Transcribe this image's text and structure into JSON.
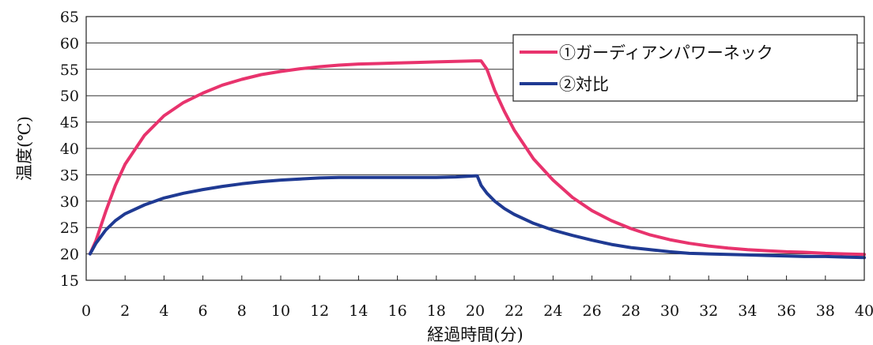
{
  "chart_data": {
    "type": "line",
    "xlabel": "経過時間(分)",
    "ylabel": "温度(℃)",
    "xlim": [
      0,
      40
    ],
    "ylim": [
      15,
      65
    ],
    "xticks": [
      0,
      2,
      4,
      6,
      8,
      10,
      12,
      14,
      16,
      18,
      20,
      22,
      24,
      26,
      28,
      30,
      32,
      34,
      36,
      38,
      40
    ],
    "yticks": [
      15,
      20,
      25,
      30,
      35,
      40,
      45,
      50,
      55,
      60,
      65
    ],
    "grid": "horizontal",
    "legend_position": "top-right",
    "series": [
      {
        "name": "①ガーディアンパワーネック",
        "color": "#e8336d",
        "x": [
          0.2,
          0.5,
          1,
          1.5,
          2,
          3,
          4,
          5,
          6,
          7,
          8,
          9,
          10,
          11,
          12,
          13,
          14,
          15,
          16,
          17,
          18,
          19,
          20,
          20.3,
          20.6,
          21,
          21.5,
          22,
          23,
          24,
          25,
          26,
          27,
          28,
          29,
          30,
          31,
          32,
          33,
          34,
          35,
          36,
          37,
          38,
          39,
          40
        ],
        "y": [
          20,
          22.5,
          28,
          33,
          37,
          42.5,
          46.2,
          48.7,
          50.5,
          52,
          53.1,
          54,
          54.6,
          55.1,
          55.5,
          55.8,
          56,
          56.1,
          56.2,
          56.3,
          56.4,
          56.5,
          56.6,
          56.6,
          55,
          51,
          47,
          43.5,
          38,
          34,
          30.7,
          28.2,
          26.3,
          24.8,
          23.6,
          22.7,
          22,
          21.5,
          21.1,
          20.8,
          20.6,
          20.4,
          20.3,
          20.1,
          20,
          19.9
        ]
      },
      {
        "name": "②対比",
        "color": "#1f3a93",
        "x": [
          0.2,
          0.5,
          1,
          1.5,
          2,
          3,
          4,
          5,
          6,
          7,
          8,
          9,
          10,
          11,
          12,
          13,
          14,
          15,
          16,
          17,
          18,
          19,
          20,
          20.1,
          20.3,
          20.6,
          21,
          21.5,
          22,
          23,
          24,
          25,
          26,
          27,
          28,
          29,
          30,
          31,
          32,
          33,
          34,
          35,
          36,
          37,
          38,
          39,
          40
        ],
        "y": [
          20,
          22,
          24.5,
          26.3,
          27.6,
          29.3,
          30.6,
          31.5,
          32.2,
          32.8,
          33.3,
          33.7,
          34,
          34.2,
          34.4,
          34.5,
          34.5,
          34.5,
          34.5,
          34.5,
          34.5,
          34.6,
          34.8,
          34.8,
          33,
          31.5,
          30,
          28.6,
          27.5,
          25.8,
          24.5,
          23.5,
          22.6,
          21.8,
          21.2,
          20.8,
          20.4,
          20.1,
          20,
          19.9,
          19.8,
          19.7,
          19.6,
          19.5,
          19.5,
          19.4,
          19.3
        ]
      }
    ]
  }
}
